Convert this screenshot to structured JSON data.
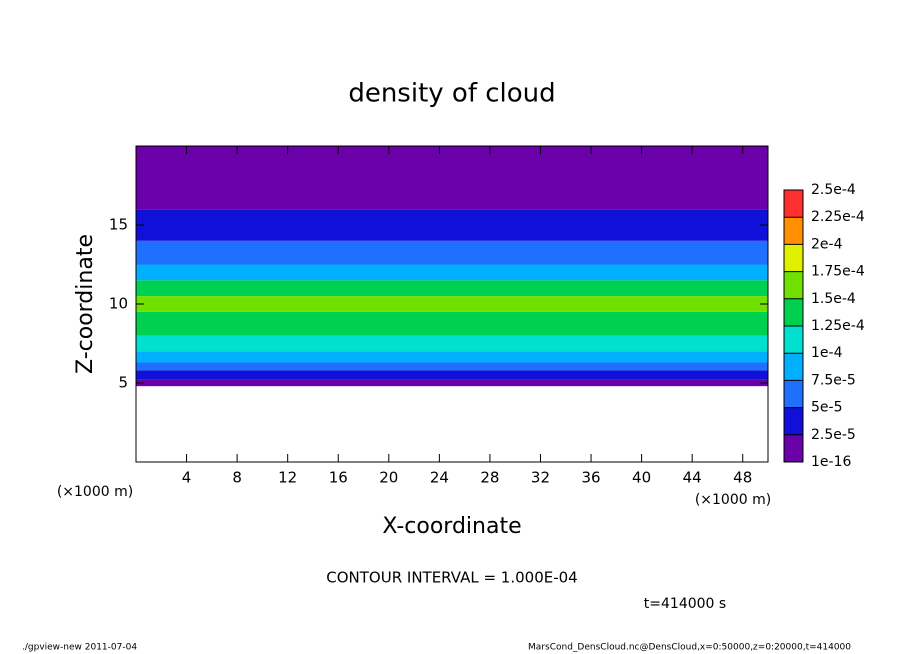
{
  "chart_data": {
    "type": "layered-field",
    "title": "density of cloud",
    "x_label": "X-coordinate",
    "y_label": "Z-coordinate",
    "x_unit": "(×1000 m)",
    "y_unit": "(×1000 m)",
    "contour_note": "CONTOUR INTERVAL = 1.000E-04",
    "time_label": "t=414000 s",
    "footer_left": "./gpview-new  2011-07-04",
    "footer_right": "MarsCond_DensCloud.nc@DensCloud,x=0:50000,z=0:20000,t=414000",
    "xlim": [
      0,
      50
    ],
    "xticks": [
      4,
      8,
      12,
      16,
      20,
      24,
      28,
      32,
      36,
      40,
      44,
      48
    ],
    "ylim": [
      0,
      20
    ],
    "yticks": [
      5,
      10,
      15
    ],
    "z_edges": [
      4.8,
      5.2,
      5.8,
      6.3,
      7,
      8,
      9.5,
      10.5,
      11.5,
      12.5,
      14,
      16,
      20
    ],
    "values": [
      1e-05,
      3e-05,
      6e-05,
      9e-05,
      0.00012,
      0.000145,
      0.00016,
      0.00013,
      8e-05,
      5e-05,
      2.5e-05,
      1e-05
    ],
    "clim": [
      1e-16,
      0.00025
    ],
    "cticks": [
      1e-16,
      {
        "value": 2.5e-05,
        "label": "2.5e-5"
      },
      {
        "value": 5e-05,
        "label": "5e-5"
      },
      {
        "value": 7.5e-05,
        "label": "7.5e-5"
      },
      {
        "value": 0.0001,
        "label": "1e-4"
      },
      {
        "value": 0.000125,
        "label": "1.25e-4"
      },
      {
        "value": 0.00015,
        "label": "1.5e-4"
      },
      {
        "value": 0.000175,
        "label": "1.75e-4"
      },
      {
        "value": 0.0002,
        "label": "2e-4"
      },
      {
        "value": 0.000225,
        "label": "2.25e-4"
      },
      {
        "value": 0.00025,
        "label": "2.5e-4"
      }
    ],
    "colors": [
      "#6a00a8",
      "#1010d8",
      "#2070ff",
      "#00b0ff",
      "#00e0d0",
      "#00d050",
      "#70e000",
      "#e0f000",
      "#ff9000",
      "#ff3030"
    ]
  }
}
